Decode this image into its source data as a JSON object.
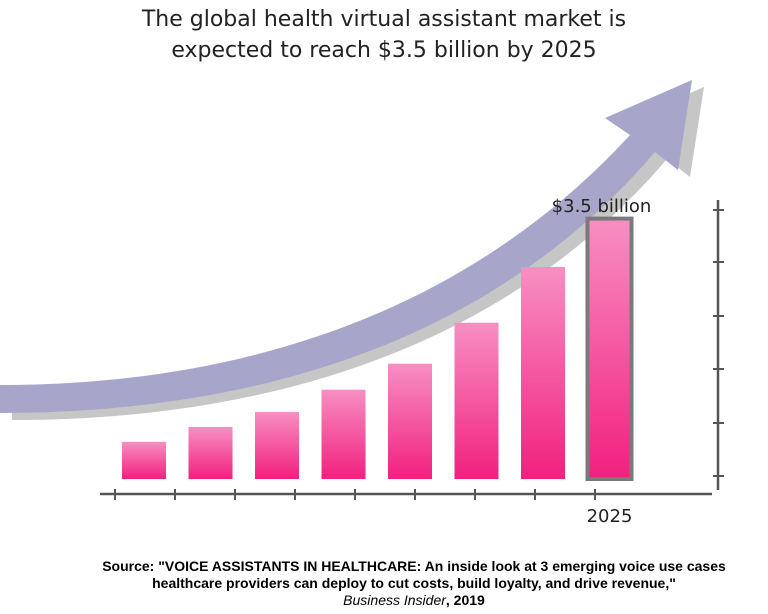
{
  "title_lines": [
    "The global health virtual assistant market is",
    "expected to reach $3.5 billion by 2025"
  ],
  "chart_data": {
    "type": "bar",
    "title": "The global health virtual assistant market is expected to reach $3.5 billion by 2025",
    "categories": [
      "",
      "",
      "",
      "",
      "",
      "",
      "",
      "2025"
    ],
    "values": [
      0.5,
      0.7,
      0.9,
      1.2,
      1.55,
      2.1,
      2.85,
      3.5
    ],
    "highlight_label": "$3.5 billion",
    "highlight_index": 7,
    "xlabel": "",
    "ylabel": "",
    "ylim": [
      0,
      3.75
    ],
    "grid": false,
    "colors": {
      "bar_top": "#f78fc2",
      "bar_bottom": "#f2207f",
      "highlight_border": "#7a7a7a",
      "arrow": "#a7a6ca",
      "arrow_shadow": "#c6c6c6",
      "axis": "#555555"
    }
  },
  "source": {
    "line1": "Source: \"VOICE ASSISTANTS IN HEALTHCARE: An inside look at 3 emerging voice use cases",
    "line2": "healthcare providers can deploy to cut costs, build loyalty, and drive revenue,\"",
    "publication": "Business Insider",
    "sep": ", ",
    "year": "2019"
  }
}
